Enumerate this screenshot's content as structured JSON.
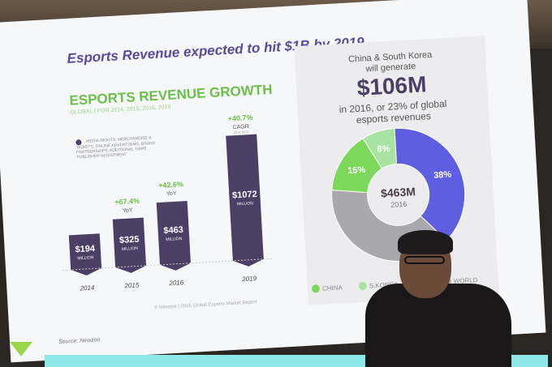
{
  "slide": {
    "title": "Esports Revenue expected to hit $1B by 2019",
    "growth_title": "ESPORTS REVENUE GROWTH",
    "growth_subtitle": "GLOBAL | FOR 2014, 2015, 2016, 2019",
    "legend_note": "MEDIA RIGHTS, MERCHANDISE & TICKETS, ONLINE ADVERTISING, BRAND PARTNERSHIPS, ADDITIONAL GAME PUBLISHER INVESTMENT",
    "footer": "© Newzoo | 2016 Global Esports Market Report",
    "source": "Source: Newzoo",
    "panel": {
      "line1": "China & South Korea",
      "line2": "will generate",
      "big": "$106M",
      "line3": "in 2016, or 23% of global",
      "line4": "esports revenues"
    }
  },
  "chart_data": [
    {
      "type": "bar",
      "title": "ESPORTS REVENUE GROWTH",
      "categories": [
        "2014",
        "2015",
        "2016",
        "2019"
      ],
      "values": [
        194,
        325,
        463,
        1072
      ],
      "value_labels": [
        "$194",
        "$325",
        "$463",
        "$1072"
      ],
      "unit_label": "MILLION",
      "growth_labels": [
        {
          "category": "2015",
          "value": "+67.4%",
          "label": "YoY"
        },
        {
          "category": "2016",
          "value": "+42.6%",
          "label": "YoY"
        },
        {
          "category": "2019",
          "value": "+40.7%",
          "label": "CAGR",
          "sub": "2014-2019"
        }
      ],
      "color": "#4b3f66"
    },
    {
      "type": "pie",
      "center_value": "$463M",
      "center_label": "2016",
      "slices": [
        {
          "name": "CHINA",
          "value": 15,
          "label": "15%",
          "color": "#7cd85a"
        },
        {
          "name": "S.KOREA",
          "value": 8,
          "label": "8%",
          "color": "#a9e3a2"
        },
        {
          "name": "N",
          "value": 38,
          "label": "38%",
          "color": "#5e5ee0"
        },
        {
          "name": "WORLD",
          "value": 39,
          "label": "",
          "color": "#a9a9ad"
        }
      ],
      "legend_placement": "bottom"
    }
  ]
}
